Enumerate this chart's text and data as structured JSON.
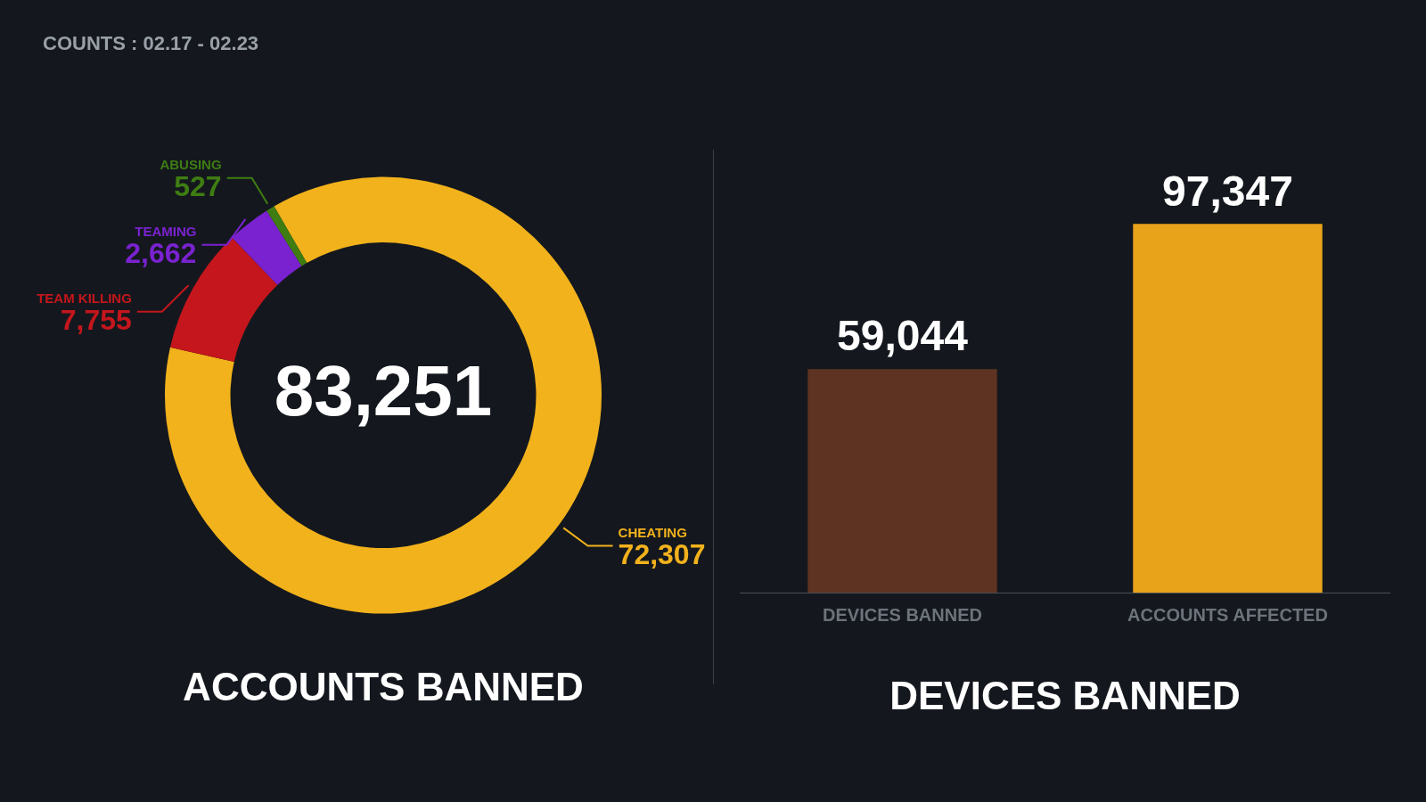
{
  "chart_data": [
    {
      "type": "donut",
      "title": "ACCOUNTS BANNED",
      "categories": [
        "CHEATING",
        "TEAM KILLING",
        "TEAMING",
        "ABUSING"
      ],
      "values": [
        72307,
        7755,
        2662,
        527
      ],
      "value_labels": [
        "72,307",
        "7,755",
        "2,662",
        "527"
      ],
      "colors": [
        "#f2b21c",
        "#c4161c",
        "#7a22d0",
        "#3f7d12"
      ],
      "annotations": [
        "COUNTS : 02.17 - 02.23",
        "83,251"
      ],
      "legend": false
    },
    {
      "type": "bar",
      "title": "DEVICES BANNED",
      "categories": [
        "DEVICES BANNED",
        "ACCOUNTS AFFECTED"
      ],
      "values": [
        59044,
        97347
      ],
      "colors": [
        "#5e3322",
        "#e9a31a"
      ],
      "value_labels": [
        "59,044",
        "97,347"
      ],
      "legend": false
    }
  ]
}
